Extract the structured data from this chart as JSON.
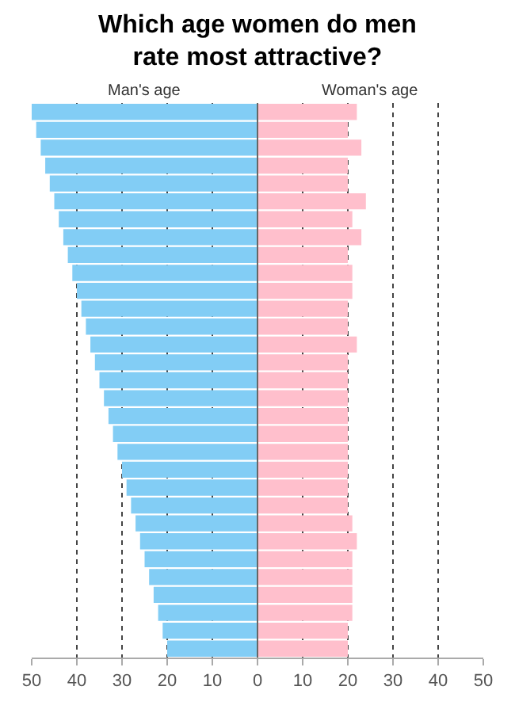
{
  "chart_data": {
    "type": "bar",
    "orientation": "horizontal",
    "stacked": true,
    "title": "Which age women do men\nrate most attractive?",
    "categories": [
      null,
      null,
      null,
      null,
      null,
      null,
      null,
      null,
      null,
      null,
      null,
      null,
      null,
      null,
      null,
      null,
      null,
      null,
      null,
      null,
      null,
      null,
      null,
      null,
      null,
      null,
      null,
      null,
      null,
      null,
      null
    ],
    "series": [
      {
        "name": "Man's age",
        "color": "#82cdf5",
        "values": [
          -50,
          -49,
          -48,
          -47,
          -46,
          -45,
          -44,
          -43,
          -42,
          -41,
          -40,
          -39,
          -38,
          -37,
          -36,
          -35,
          -34,
          -33,
          -32,
          -31,
          -30,
          -29,
          -28,
          -27,
          -26,
          -25,
          -24,
          -23,
          -22,
          -21,
          -20
        ]
      },
      {
        "name": "Woman's age",
        "color": "#ffbfcc",
        "values": [
          22,
          20,
          23,
          20,
          20,
          24,
          21,
          23,
          20,
          21,
          21,
          20,
          20,
          22,
          20,
          20,
          20,
          20,
          20,
          20,
          20,
          20,
          20,
          21,
          22,
          21,
          21,
          21,
          21,
          20,
          20
        ]
      }
    ],
    "xlim": [
      -50,
      50
    ],
    "xticks": [
      {
        "value": -50,
        "label": "50"
      },
      {
        "value": -40,
        "label": "40"
      },
      {
        "value": -30,
        "label": "30"
      },
      {
        "value": -20,
        "label": "20"
      },
      {
        "value": -10,
        "label": "10"
      },
      0,
      10,
      20,
      30,
      40,
      50
    ],
    "grid": "x",
    "legend": false,
    "tick_labels": "x",
    "ref_lines": [
      {
        "axis": "x",
        "value": 0,
        "color": "#666666"
      }
    ]
  }
}
